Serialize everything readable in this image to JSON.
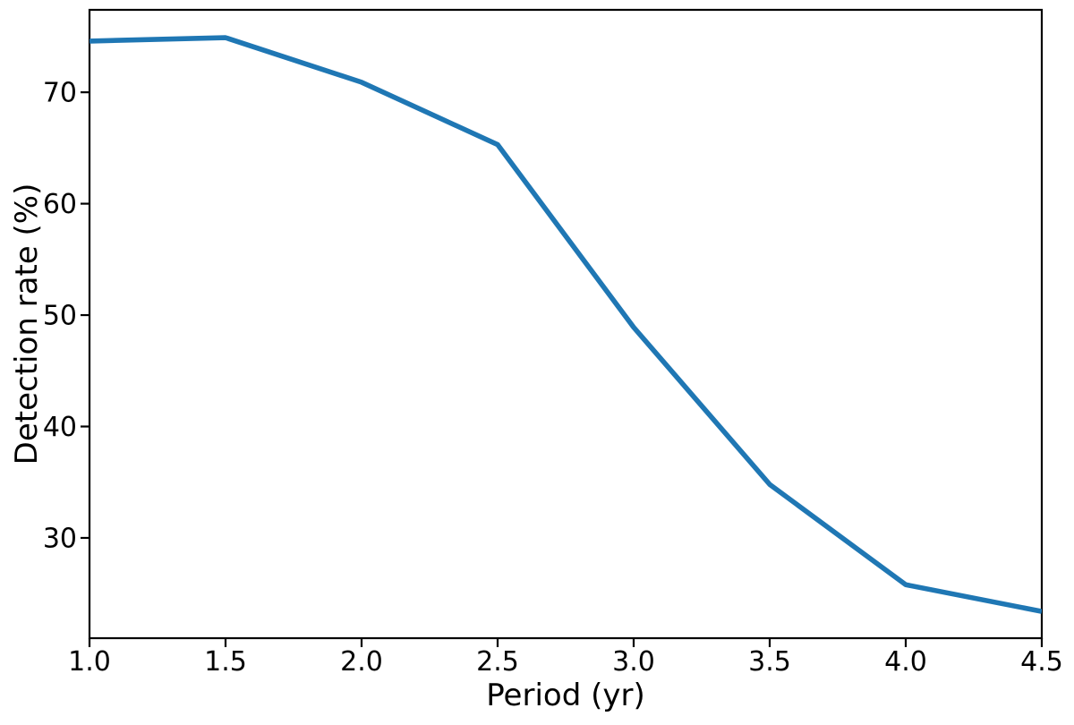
{
  "chart_data": {
    "type": "line",
    "title": "",
    "xlabel": "Period (yr)",
    "ylabel": "Detection rate (%)",
    "x": [
      1.0,
      1.5,
      2.0,
      2.5,
      3.0,
      3.5,
      4.0,
      4.5
    ],
    "y": [
      74.6,
      74.9,
      70.9,
      65.3,
      48.9,
      34.8,
      25.8,
      23.4
    ],
    "xlim": [
      1.0,
      4.5
    ],
    "ylim": [
      21.0,
      77.4
    ],
    "x_tick_values": [
      1.0,
      1.5,
      2.0,
      2.5,
      3.0,
      3.5,
      4.0,
      4.5
    ],
    "x_tick_labels": [
      "1.0",
      "1.5",
      "2.0",
      "2.5",
      "3.0",
      "3.5",
      "4.0",
      "4.5"
    ],
    "y_tick_values": [
      30,
      40,
      50,
      60,
      70
    ],
    "y_tick_labels": [
      "30",
      "40",
      "50",
      "60",
      "70"
    ],
    "grid": false,
    "legend_position": "none",
    "line_color": "#1f77b4",
    "axis_color": "#000000",
    "background_color": "#ffffff"
  }
}
